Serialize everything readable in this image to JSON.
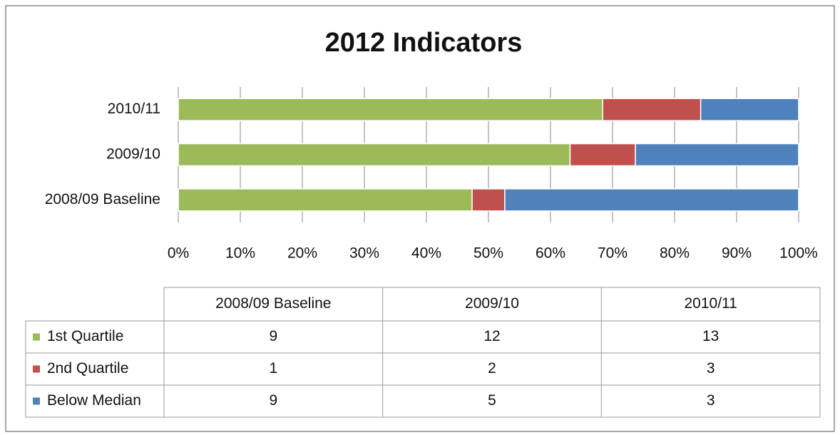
{
  "chart_data": {
    "type": "bar",
    "orientation": "horizontal",
    "stacking": "percent",
    "title": "2012 Indicators",
    "categories": [
      "2008/09 Baseline",
      "2009/10",
      "2010/11"
    ],
    "series": [
      {
        "name": "1st Quartile",
        "color": "#9bbb59",
        "values": [
          9,
          12,
          13
        ]
      },
      {
        "name": "2nd Quartile",
        "color": "#c0504d",
        "values": [
          1,
          2,
          3
        ]
      },
      {
        "name": "Below Median",
        "color": "#4f81bd",
        "values": [
          9,
          5,
          3
        ]
      }
    ],
    "xlim": [
      0,
      100
    ],
    "xticks": [
      {
        "value": 0,
        "label": "0%"
      },
      {
        "value": 10,
        "label": "10%"
      },
      {
        "value": 20,
        "label": "20%"
      },
      {
        "value": 30,
        "label": "30%"
      },
      {
        "value": 40,
        "label": "40%"
      },
      {
        "value": 50,
        "label": "50%"
      },
      {
        "value": 60,
        "label": "60%"
      },
      {
        "value": 70,
        "label": "70%"
      },
      {
        "value": 80,
        "label": "80%"
      },
      {
        "value": 90,
        "label": "90%"
      },
      {
        "value": 100,
        "label": "100%"
      }
    ],
    "grid": true,
    "data_table": true
  }
}
